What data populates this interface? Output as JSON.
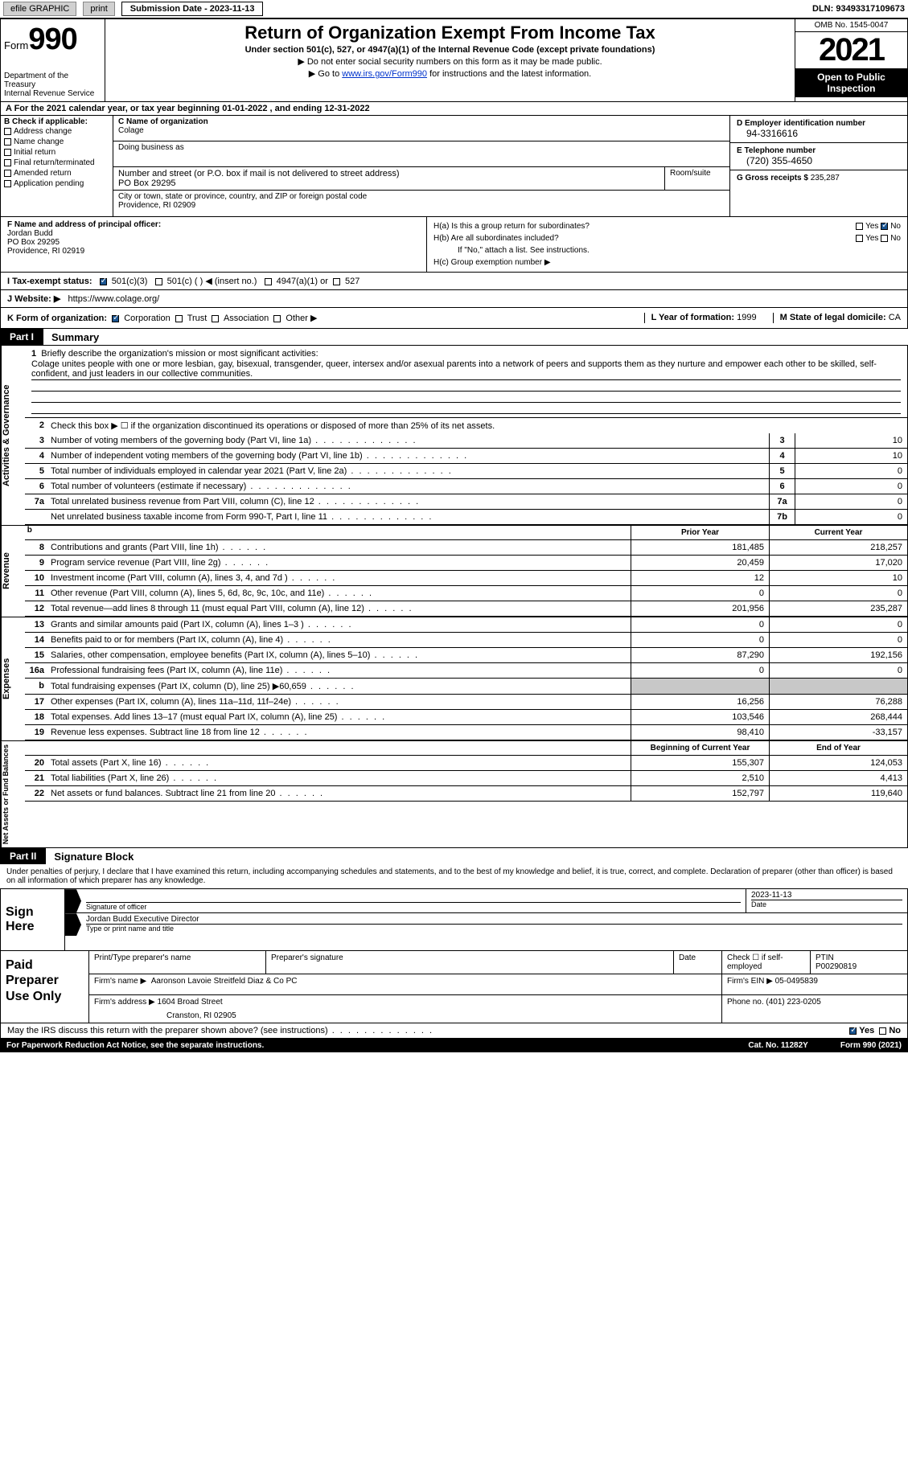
{
  "topbar": {
    "efile_label": "efile GRAPHIC",
    "print_label": "print",
    "submission_label": "Submission Date - 2023-11-13",
    "dln": "DLN: 93493317109673"
  },
  "header": {
    "form_word": "Form",
    "form_num": "990",
    "dept": "Department of the Treasury",
    "irs": "Internal Revenue Service",
    "title": "Return of Organization Exempt From Income Tax",
    "subtitle": "Under section 501(c), 527, or 4947(a)(1) of the Internal Revenue Code (except private foundations)",
    "note1": "▶ Do not enter social security numbers on this form as it may be made public.",
    "note2_pre": "▶ Go to ",
    "note2_link": "www.irs.gov/Form990",
    "note2_post": " for instructions and the latest information.",
    "omb": "OMB No. 1545-0047",
    "year": "2021",
    "inspection": "Open to Public Inspection"
  },
  "period": "A For the 2021 calendar year, or tax year beginning 01-01-2022   , and ending 12-31-2022",
  "box_b": {
    "label": "B Check if applicable:",
    "items": [
      "Address change",
      "Name change",
      "Initial return",
      "Final return/terminated",
      "Amended return",
      "Application pending"
    ]
  },
  "box_c": {
    "name_label": "C Name of organization",
    "name": "Colage",
    "dba_label": "Doing business as",
    "addr_label": "Number and street (or P.O. box if mail is not delivered to street address)",
    "room_label": "Room/suite",
    "addr": "PO Box 29295",
    "city_label": "City or town, state or province, country, and ZIP or foreign postal code",
    "city": "Providence, RI  02909"
  },
  "box_d": {
    "ein_label": "D Employer identification number",
    "ein": "94-3316616",
    "phone_label": "E Telephone number",
    "phone": "(720) 355-4650",
    "gross_label": "G Gross receipts $",
    "gross": "235,287"
  },
  "box_f": {
    "label": "F  Name and address of principal officer:",
    "name": "Jordan Budd",
    "addr1": "PO Box 29295",
    "addr2": "Providence, RI  02919"
  },
  "box_h": {
    "ha": "H(a)  Is this a group return for subordinates?",
    "hb": "H(b)  Are all subordinates included?",
    "hb_note": "If \"No,\" attach a list. See instructions.",
    "hc": "H(c)  Group exemption number ▶",
    "yes": "Yes",
    "no": "No"
  },
  "row_i": {
    "label": "I   Tax-exempt status:",
    "opts": [
      "501(c)(3)",
      "501(c) (  ) ◀ (insert no.)",
      "4947(a)(1) or",
      "527"
    ]
  },
  "row_j": {
    "label": "J   Website: ▶",
    "url": "https://www.colage.org/"
  },
  "row_k": {
    "label": "K Form of organization:",
    "opts": [
      "Corporation",
      "Trust",
      "Association",
      "Other ▶"
    ],
    "l_label": "L Year of formation:",
    "l_val": "1999",
    "m_label": "M State of legal domicile:",
    "m_val": "CA"
  },
  "parts": {
    "p1_tab": "Part I",
    "p1_title": "Summary",
    "p2_tab": "Part II",
    "p2_title": "Signature Block"
  },
  "mission": {
    "q1_label": "Briefly describe the organization's mission or most significant activities:",
    "q1_text": "Colage unites people with one or more lesbian, gay, bisexual, transgender, queer, intersex and/or asexual parents into a network of peers and supports them as they nurture and empower each other to be skilled, self-confident, and just leaders in our collective communities.",
    "q2_text": "Check this box ▶ ☐  if the organization discontinued its operations or disposed of more than 25% of its net assets."
  },
  "side_labels": {
    "gov": "Activities & Governance",
    "rev": "Revenue",
    "exp": "Expenses",
    "net": "Net Assets or Fund Balances"
  },
  "col_headers": {
    "prior": "Prior Year",
    "current": "Current Year",
    "begin": "Beginning of Current Year",
    "end": "End of Year"
  },
  "lines_gov": [
    {
      "n": "3",
      "t": "Number of voting members of the governing body (Part VI, line 1a)",
      "box": "3",
      "v": "10"
    },
    {
      "n": "4",
      "t": "Number of independent voting members of the governing body (Part VI, line 1b)",
      "box": "4",
      "v": "10"
    },
    {
      "n": "5",
      "t": "Total number of individuals employed in calendar year 2021 (Part V, line 2a)",
      "box": "5",
      "v": "0"
    },
    {
      "n": "6",
      "t": "Total number of volunteers (estimate if necessary)",
      "box": "6",
      "v": "0"
    },
    {
      "n": "7a",
      "t": "Total unrelated business revenue from Part VIII, column (C), line 12",
      "box": "7a",
      "v": "0"
    },
    {
      "n": "",
      "t": "Net unrelated business taxable income from Form 990-T, Part I, line 11",
      "box": "7b",
      "v": "0"
    }
  ],
  "lines_rev": [
    {
      "n": "8",
      "t": "Contributions and grants (Part VIII, line 1h)",
      "p": "181,485",
      "c": "218,257"
    },
    {
      "n": "9",
      "t": "Program service revenue (Part VIII, line 2g)",
      "p": "20,459",
      "c": "17,020"
    },
    {
      "n": "10",
      "t": "Investment income (Part VIII, column (A), lines 3, 4, and 7d )",
      "p": "12",
      "c": "10"
    },
    {
      "n": "11",
      "t": "Other revenue (Part VIII, column (A), lines 5, 6d, 8c, 9c, 10c, and 11e)",
      "p": "0",
      "c": "0"
    },
    {
      "n": "12",
      "t": "Total revenue—add lines 8 through 11 (must equal Part VIII, column (A), line 12)",
      "p": "201,956",
      "c": "235,287"
    }
  ],
  "lines_exp": [
    {
      "n": "13",
      "t": "Grants and similar amounts paid (Part IX, column (A), lines 1–3 )",
      "p": "0",
      "c": "0"
    },
    {
      "n": "14",
      "t": "Benefits paid to or for members (Part IX, column (A), line 4)",
      "p": "0",
      "c": "0"
    },
    {
      "n": "15",
      "t": "Salaries, other compensation, employee benefits (Part IX, column (A), lines 5–10)",
      "p": "87,290",
      "c": "192,156"
    },
    {
      "n": "16a",
      "t": "Professional fundraising fees (Part IX, column (A), line 11e)",
      "p": "0",
      "c": "0"
    },
    {
      "n": "b",
      "t": "Total fundraising expenses (Part IX, column (D), line 25) ▶60,659",
      "p": "shaded",
      "c": "shaded"
    },
    {
      "n": "17",
      "t": "Other expenses (Part IX, column (A), lines 11a–11d, 11f–24e)",
      "p": "16,256",
      "c": "76,288"
    },
    {
      "n": "18",
      "t": "Total expenses. Add lines 13–17 (must equal Part IX, column (A), line 25)",
      "p": "103,546",
      "c": "268,444"
    },
    {
      "n": "19",
      "t": "Revenue less expenses. Subtract line 18 from line 12",
      "p": "98,410",
      "c": "-33,157"
    }
  ],
  "lines_net": [
    {
      "n": "20",
      "t": "Total assets (Part X, line 16)",
      "p": "155,307",
      "c": "124,053"
    },
    {
      "n": "21",
      "t": "Total liabilities (Part X, line 26)",
      "p": "2,510",
      "c": "4,413"
    },
    {
      "n": "22",
      "t": "Net assets or fund balances. Subtract line 21 from line 20",
      "p": "152,797",
      "c": "119,640"
    }
  ],
  "sig": {
    "penalty": "Under penalties of perjury, I declare that I have examined this return, including accompanying schedules and statements, and to the best of my knowledge and belief, it is true, correct, and complete. Declaration of preparer (other than officer) is based on all information of which preparer has any knowledge.",
    "sign_here": "Sign Here",
    "sig_officer": "Signature of officer",
    "date": "2023-11-13",
    "date_label": "Date",
    "name": "Jordan Budd  Executive Director",
    "name_label": "Type or print name and title"
  },
  "paid": {
    "label": "Paid Preparer Use Only",
    "h_name": "Print/Type preparer's name",
    "h_sig": "Preparer's signature",
    "h_date": "Date",
    "h_check": "Check ☐ if self-employed",
    "h_ptin": "PTIN",
    "ptin": "P00290819",
    "firm_name_label": "Firm's name     ▶",
    "firm_name": "Aaronson Lavoie Streitfeld Diaz & Co PC",
    "firm_ein_label": "Firm's EIN ▶",
    "firm_ein": "05-0495839",
    "firm_addr_label": "Firm's address ▶",
    "firm_addr1": "1604 Broad Street",
    "firm_addr2": "Cranston, RI  02905",
    "phone_label": "Phone no.",
    "phone": "(401) 223-0205"
  },
  "discuss": {
    "text": "May the IRS discuss this return with the preparer shown above? (see instructions)",
    "yes": "Yes",
    "no": "No"
  },
  "footer": {
    "notice": "For Paperwork Reduction Act Notice, see the separate instructions.",
    "cat": "Cat. No. 11282Y",
    "form": "Form 990 (2021)"
  }
}
